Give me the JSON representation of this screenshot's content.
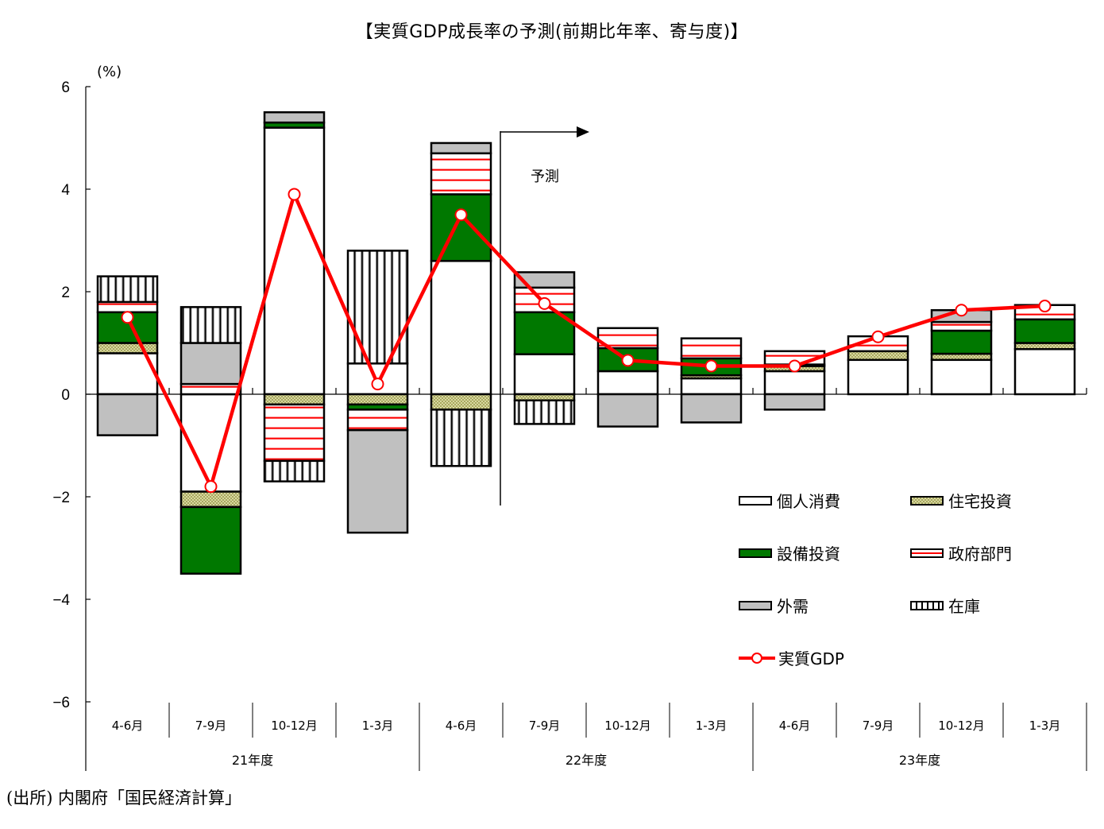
{
  "title": "【実質GDP成長率の予測(前期比年率、寄与度)】",
  "unit_label": "(%)",
  "forecast_label": "予測",
  "source_note": "(出所) 内閣府「国民経済計算」",
  "colors": {
    "consumption": "#ffffff",
    "housing": "#c8c88a",
    "capex": "#007800",
    "government": "#ff0000",
    "external": "#c0c0c0",
    "inventory": "#000000",
    "gdp_line": "#ff0000"
  },
  "legend": [
    {
      "key": "consumption",
      "label": "個人消費"
    },
    {
      "key": "housing",
      "label": "住宅投資"
    },
    {
      "key": "capex",
      "label": "設備投資"
    },
    {
      "key": "government",
      "label": "政府部門"
    },
    {
      "key": "external",
      "label": "外需"
    },
    {
      "key": "inventory",
      "label": "在庫"
    },
    {
      "key": "gdp",
      "label": "実質GDP"
    }
  ],
  "chart_data": {
    "type": "bar",
    "subtype": "stacked bar with line overlay",
    "title": "【実質GDP成長率の予測(前期比年率、寄与度)】",
    "xlabel": "",
    "ylabel": "(%)",
    "ylim": [
      -6,
      6
    ],
    "yticks": [
      6,
      4,
      2,
      0,
      -2,
      -4,
      -6
    ],
    "grid": false,
    "legend_position": "lower right inside",
    "categories": [
      "4-6月",
      "7-9月",
      "10-12月",
      "1-3月",
      "4-6月",
      "7-9月",
      "10-12月",
      "1-3月",
      "4-6月",
      "7-9月",
      "10-12月",
      "1-3月"
    ],
    "fiscal_years": [
      {
        "label": "21年度",
        "span": [
          0,
          3
        ]
      },
      {
        "label": "22年度",
        "span": [
          4,
          7
        ]
      },
      {
        "label": "23年度",
        "span": [
          8,
          11
        ]
      }
    ],
    "forecast_start_index": 5,
    "annotation": "予測 (arrow from 22年度7-9月 onward)",
    "series": [
      {
        "name": "個人消費",
        "key": "consumption",
        "values": [
          0.8,
          -1.9,
          5.2,
          0.6,
          2.6,
          0.78,
          0.45,
          0.31,
          0.45,
          0.67,
          0.67,
          0.88
        ]
      },
      {
        "name": "住宅投資",
        "key": "housing",
        "values": [
          0.2,
          -0.3,
          -0.2,
          -0.2,
          -0.3,
          -0.12,
          0.0,
          0.06,
          0.1,
          0.17,
          0.12,
          0.12
        ]
      },
      {
        "name": "設備投資",
        "key": "capex",
        "values": [
          0.6,
          -1.3,
          0.1,
          -0.1,
          1.3,
          0.82,
          0.45,
          0.33,
          0.03,
          0.0,
          0.45,
          0.46
        ]
      },
      {
        "name": "政府部門",
        "key": "government",
        "values": [
          0.2,
          0.2,
          -1.1,
          -0.4,
          0.8,
          0.48,
          0.39,
          0.39,
          0.26,
          0.29,
          0.17,
          0.28
        ]
      },
      {
        "name": "外需",
        "key": "external",
        "values": [
          -0.8,
          0.8,
          0.2,
          -2.0,
          0.2,
          0.3,
          -0.63,
          -0.55,
          -0.3,
          0.0,
          0.23,
          0.0
        ]
      },
      {
        "name": "在庫",
        "key": "inventory",
        "values": [
          0.5,
          0.7,
          -0.4,
          2.2,
          -1.1,
          -0.46,
          0.0,
          0.0,
          0.0,
          0.0,
          0.0,
          0.0
        ]
      },
      {
        "name": "実質GDP",
        "key": "gdp",
        "type": "line",
        "values": [
          1.5,
          -1.8,
          3.9,
          0.2,
          3.5,
          1.77,
          0.66,
          0.55,
          0.55,
          1.12,
          1.64,
          1.72
        ]
      }
    ]
  }
}
